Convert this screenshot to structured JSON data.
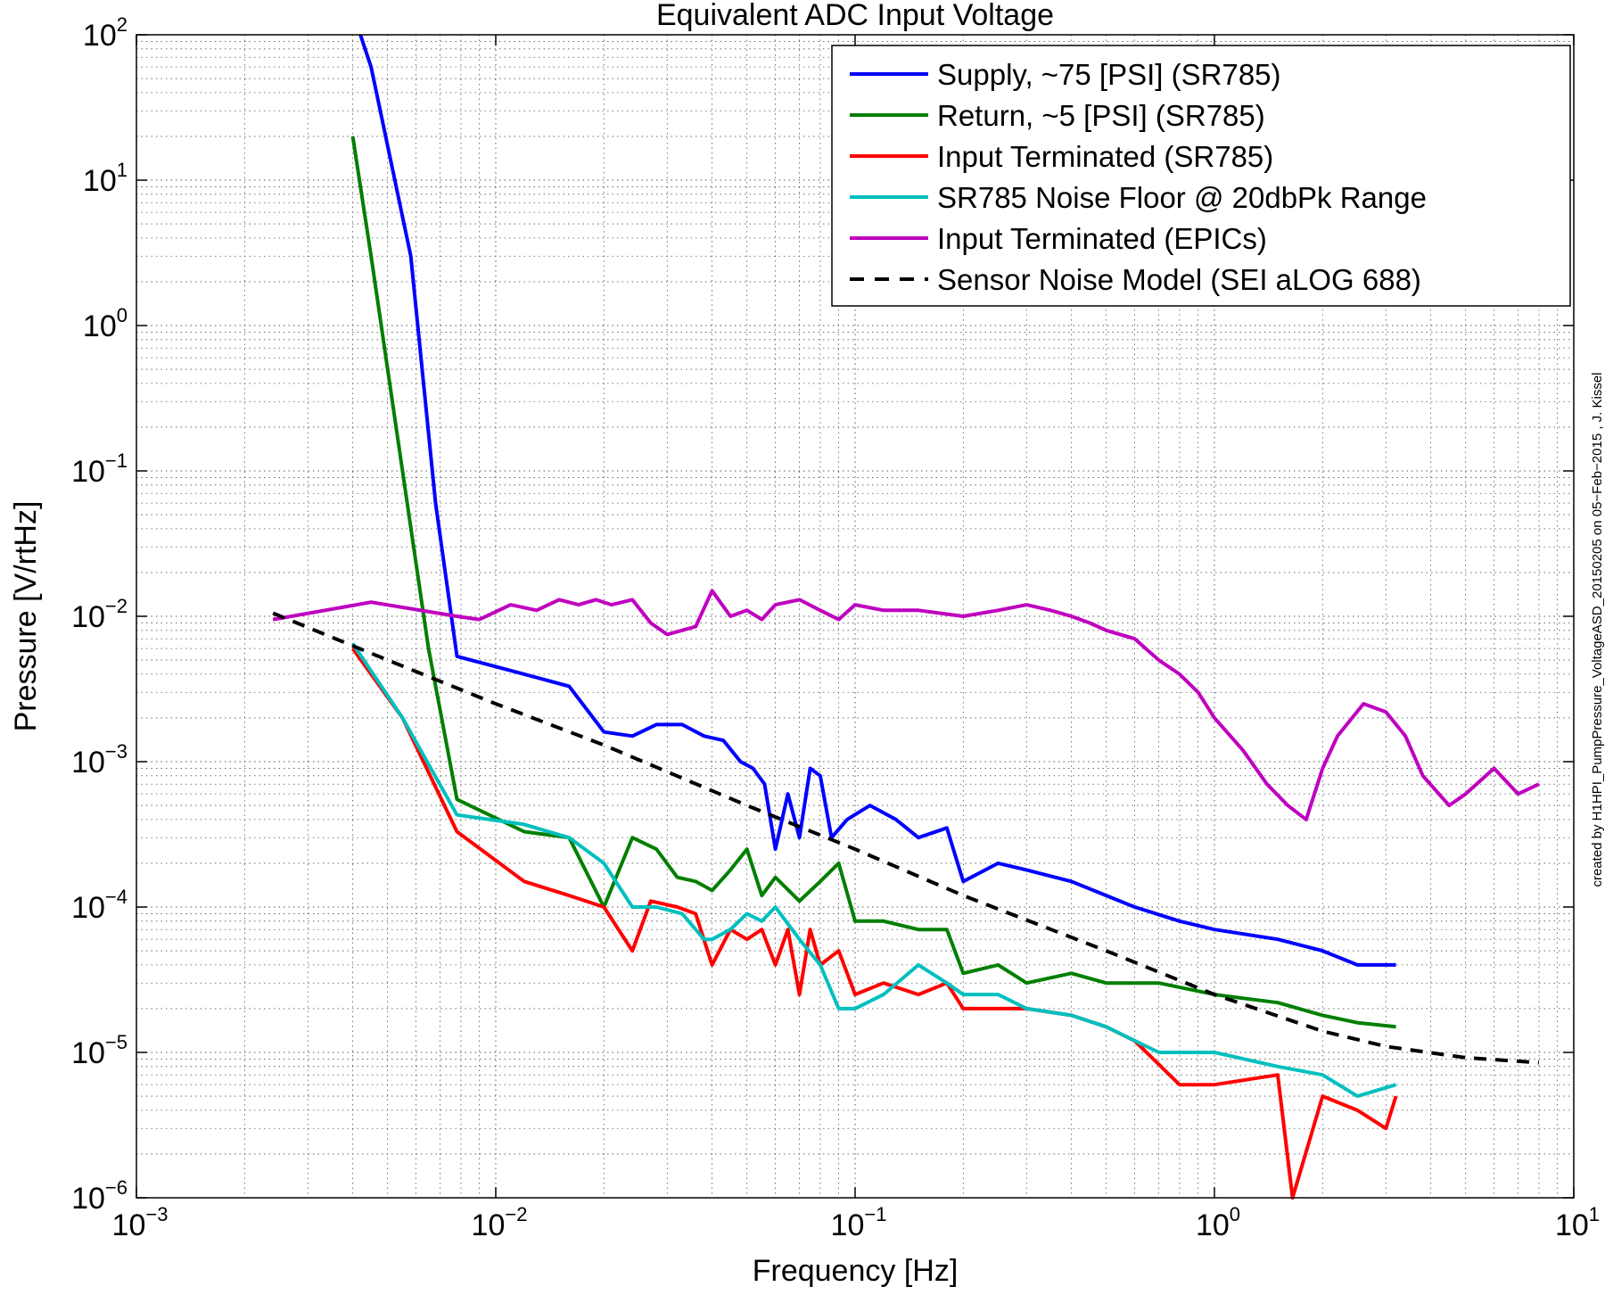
{
  "chart_data": {
    "type": "line",
    "title": "Equivalent ADC Input Voltage",
    "xlabel": "Frequency [Hz]",
    "ylabel": "Pressure [V/rtHz]",
    "x_scale": "log",
    "y_scale": "log",
    "xlim": [
      0.001,
      10
    ],
    "ylim": [
      1e-06,
      100
    ],
    "grid": true,
    "legend_position": "top-right",
    "credit": "created by H1HPI_PumpPressure_VoltageASD_20150205 on 05−Feb−2015 , J. Kissel",
    "x_ticks": [
      {
        "base": "10",
        "exp": "−3",
        "value": 0.001
      },
      {
        "base": "10",
        "exp": "−2",
        "value": 0.01
      },
      {
        "base": "10",
        "exp": "−1",
        "value": 0.1
      },
      {
        "base": "10",
        "exp": "0",
        "value": 1
      },
      {
        "base": "10",
        "exp": "1",
        "value": 10
      }
    ],
    "y_ticks": [
      {
        "base": "10",
        "exp": "2",
        "value": 100
      },
      {
        "base": "10",
        "exp": "1",
        "value": 10
      },
      {
        "base": "10",
        "exp": "0",
        "value": 1
      },
      {
        "base": "10",
        "exp": "−1",
        "value": 0.1
      },
      {
        "base": "10",
        "exp": "−2",
        "value": 0.01
      },
      {
        "base": "10",
        "exp": "−3",
        "value": 0.001
      },
      {
        "base": "10",
        "exp": "−4",
        "value": 0.0001
      },
      {
        "base": "10",
        "exp": "−5",
        "value": 1e-05
      },
      {
        "base": "10",
        "exp": "−6",
        "value": 1e-06
      }
    ],
    "series": [
      {
        "name": "Supply, ~75 [PSI] (SR785)",
        "color": "#0000ff",
        "dash": "solid",
        "x": [
          0.0042,
          0.0045,
          0.0058,
          0.0068,
          0.0078,
          0.012,
          0.016,
          0.02,
          0.024,
          0.028,
          0.033,
          0.038,
          0.043,
          0.048,
          0.052,
          0.056,
          0.06,
          0.065,
          0.07,
          0.075,
          0.08,
          0.086,
          0.095,
          0.11,
          0.13,
          0.15,
          0.18,
          0.2,
          0.25,
          0.3,
          0.4,
          0.5,
          0.6,
          0.8,
          1.0,
          1.5,
          2.0,
          2.5,
          3.2
        ],
        "y": [
          100,
          60,
          3,
          0.06,
          0.0053,
          0.004,
          0.0033,
          0.0016,
          0.0015,
          0.0018,
          0.0018,
          0.0015,
          0.0014,
          0.001,
          0.0009,
          0.0007,
          0.00025,
          0.0006,
          0.0003,
          0.0009,
          0.0008,
          0.0003,
          0.0004,
          0.0005,
          0.0004,
          0.0003,
          0.00035,
          0.00015,
          0.0002,
          0.00018,
          0.00015,
          0.00012,
          0.0001,
          8e-05,
          7e-05,
          6e-05,
          5e-05,
          4e-05,
          4e-05
        ]
      },
      {
        "name": "Return, ~5 [PSI] (SR785)",
        "color": "#007f00",
        "dash": "solid",
        "x": [
          0.004,
          0.0045,
          0.0055,
          0.0065,
          0.0078,
          0.012,
          0.016,
          0.02,
          0.024,
          0.028,
          0.032,
          0.036,
          0.04,
          0.045,
          0.05,
          0.055,
          0.06,
          0.07,
          0.08,
          0.09,
          0.1,
          0.12,
          0.15,
          0.18,
          0.2,
          0.25,
          0.3,
          0.4,
          0.5,
          0.7,
          1.0,
          1.5,
          2.0,
          2.5,
          3.2
        ],
        "y": [
          20,
          3,
          0.1,
          0.006,
          0.00055,
          0.00033,
          0.0003,
          0.0001,
          0.0003,
          0.00025,
          0.00016,
          0.00015,
          0.00013,
          0.00018,
          0.00025,
          0.00012,
          0.00016,
          0.00011,
          0.00015,
          0.0002,
          8e-05,
          8e-05,
          7e-05,
          7e-05,
          3.5e-05,
          4e-05,
          3e-05,
          3.5e-05,
          3e-05,
          3e-05,
          2.5e-05,
          2.2e-05,
          1.8e-05,
          1.6e-05,
          1.5e-05
        ]
      },
      {
        "name": "Input Terminated (SR785)",
        "color": "#ff0000",
        "dash": "solid",
        "x": [
          0.004,
          0.0055,
          0.0078,
          0.012,
          0.016,
          0.02,
          0.024,
          0.027,
          0.032,
          0.036,
          0.04,
          0.045,
          0.05,
          0.055,
          0.06,
          0.065,
          0.07,
          0.075,
          0.08,
          0.09,
          0.1,
          0.12,
          0.15,
          0.18,
          0.2,
          0.25,
          0.3,
          0.4,
          0.5,
          0.6,
          0.8,
          1.0,
          1.5,
          1.65,
          2.0,
          2.5,
          3.0,
          3.2
        ],
        "y": [
          0.006,
          0.002,
          0.00033,
          0.00015,
          0.00012,
          0.0001,
          5e-05,
          0.00011,
          0.0001,
          9e-05,
          4e-05,
          7e-05,
          6e-05,
          7e-05,
          4e-05,
          7e-05,
          2.5e-05,
          7e-05,
          4e-05,
          5e-05,
          2.5e-05,
          3e-05,
          2.5e-05,
          3e-05,
          2e-05,
          2e-05,
          2e-05,
          1.8e-05,
          1.5e-05,
          1.2e-05,
          6e-06,
          6e-06,
          7e-06,
          1e-06,
          5e-06,
          4e-06,
          3e-06,
          5e-06
        ]
      },
      {
        "name": "SR785 Noise Floor @ 20dbPk Range",
        "color": "#00bfbf",
        "dash": "solid",
        "x": [
          0.004,
          0.0055,
          0.0078,
          0.012,
          0.016,
          0.02,
          0.024,
          0.028,
          0.033,
          0.038,
          0.04,
          0.045,
          0.05,
          0.055,
          0.06,
          0.07,
          0.08,
          0.09,
          0.1,
          0.12,
          0.15,
          0.18,
          0.2,
          0.25,
          0.3,
          0.4,
          0.5,
          0.7,
          1.0,
          1.5,
          2.0,
          2.5,
          3.2
        ],
        "y": [
          0.0065,
          0.002,
          0.00043,
          0.00037,
          0.0003,
          0.0002,
          0.0001,
          0.0001,
          9e-05,
          6e-05,
          6e-05,
          7e-05,
          9e-05,
          8e-05,
          0.0001,
          6e-05,
          4e-05,
          2e-05,
          2e-05,
          2.5e-05,
          4e-05,
          3e-05,
          2.5e-05,
          2.5e-05,
          2e-05,
          1.8e-05,
          1.5e-05,
          1e-05,
          1e-05,
          8e-06,
          7e-06,
          5e-06,
          6e-06
        ]
      },
      {
        "name": "Input Terminated (EPICs)",
        "color": "#bf00bf",
        "dash": "solid",
        "x": [
          0.0024,
          0.0045,
          0.0078,
          0.009,
          0.011,
          0.013,
          0.015,
          0.017,
          0.019,
          0.021,
          0.024,
          0.027,
          0.03,
          0.033,
          0.036,
          0.04,
          0.045,
          0.05,
          0.055,
          0.06,
          0.07,
          0.08,
          0.09,
          0.1,
          0.12,
          0.15,
          0.2,
          0.25,
          0.3,
          0.35,
          0.4,
          0.45,
          0.5,
          0.6,
          0.7,
          0.8,
          0.9,
          1.0,
          1.2,
          1.4,
          1.6,
          1.8,
          2.0,
          2.2,
          2.6,
          3.0,
          3.4,
          3.8,
          4.5,
          5.0,
          6.0,
          7.0,
          8.0
        ],
        "y": [
          0.0095,
          0.0125,
          0.01,
          0.0095,
          0.012,
          0.011,
          0.013,
          0.012,
          0.013,
          0.012,
          0.013,
          0.009,
          0.0075,
          0.008,
          0.0085,
          0.015,
          0.01,
          0.011,
          0.0095,
          0.012,
          0.013,
          0.011,
          0.0095,
          0.012,
          0.011,
          0.011,
          0.01,
          0.011,
          0.012,
          0.011,
          0.01,
          0.009,
          0.008,
          0.007,
          0.005,
          0.004,
          0.003,
          0.002,
          0.0012,
          0.0007,
          0.0005,
          0.0004,
          0.0009,
          0.0015,
          0.0025,
          0.0022,
          0.0015,
          0.0008,
          0.0005,
          0.0006,
          0.0009,
          0.0006,
          0.0007
        ]
      },
      {
        "name": "Sensor Noise Model (SEI aLOG 688)",
        "color": "#000000",
        "dash": "dashed",
        "x": [
          0.0024,
          0.005,
          0.01,
          0.02,
          0.05,
          0.1,
          0.2,
          0.5,
          1.0,
          2.0,
          3.0,
          5.0,
          8.0
        ],
        "y": [
          0.0105,
          0.005,
          0.0025,
          0.0013,
          0.0005,
          0.00025,
          0.00012,
          5e-05,
          2.5e-05,
          1.4e-05,
          1.1e-05,
          9.2e-06,
          8.5e-06
        ]
      }
    ]
  }
}
